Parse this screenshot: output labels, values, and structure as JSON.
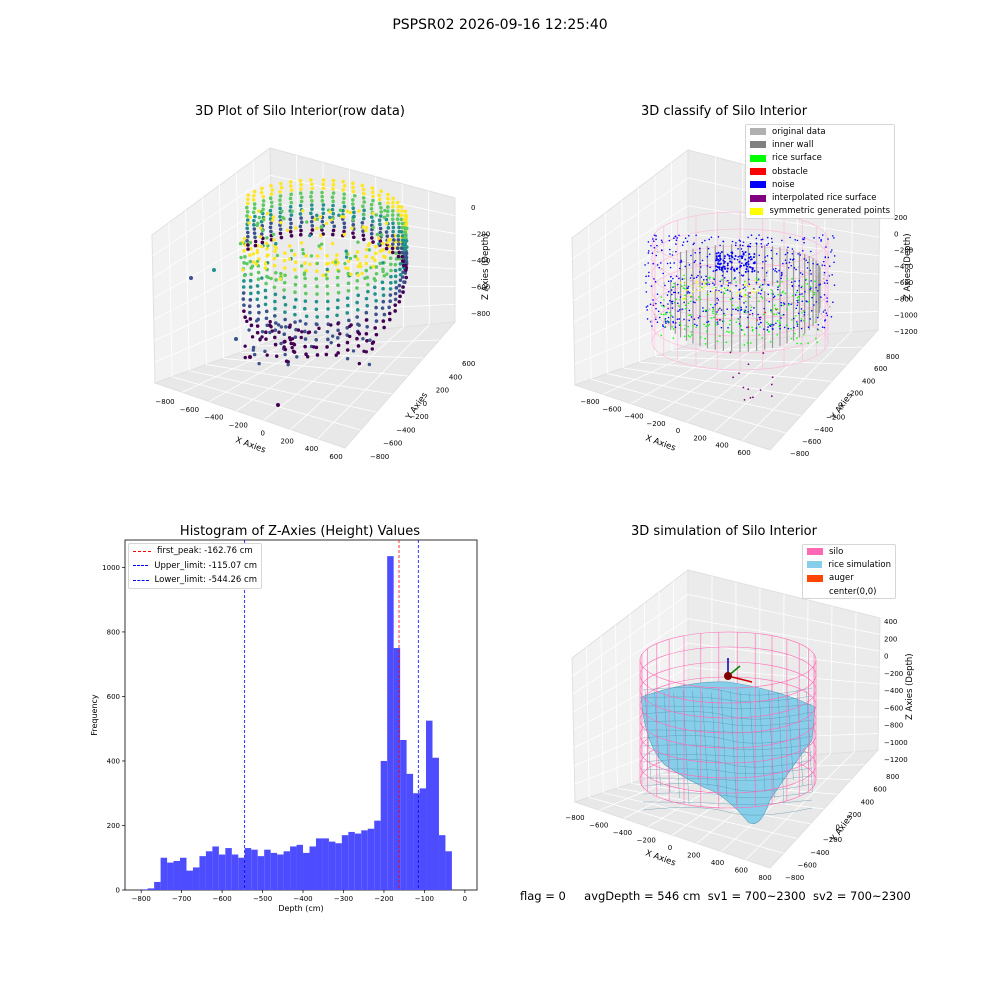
{
  "figure_title": "PSPSR02 2026-09-16 12:25:40",
  "footer": {
    "flag": "flag = 0",
    "avg_depth": "avgDepth = 546 cm",
    "sv1": "sv1 = 700~2300",
    "sv2": "sv2 = 700~2300"
  },
  "colors": {
    "hist_bar": "#4d4dff",
    "first_peak_line": "#ff0000",
    "limit_line": "#0000ff",
    "silo_wire": "#ff69b4",
    "rice_sim": "#87ceeb"
  },
  "chart_data": [
    {
      "type": "scatter",
      "projection": "3d",
      "title": "3D Plot of Silo Interior(row data)",
      "xlabel": "X Axies",
      "ylabel": "Y Axies",
      "zlabel": "Z Axies (Depth)",
      "x_ticks": [
        "−800",
        "−600",
        "−400",
        "−200",
        "0",
        "200",
        "400",
        "600"
      ],
      "y_ticks": [
        "−800",
        "−600",
        "−400",
        "−200",
        "0",
        "200",
        "400",
        "600"
      ],
      "z_ticks": [
        "0",
        "−200",
        "−400",
        "−600",
        "−800"
      ],
      "colormap": "viridis",
      "xlim": [
        -900,
        650
      ],
      "ylim": [
        -850,
        650
      ],
      "zlim": [
        -900,
        50
      ]
    },
    {
      "type": "scatter",
      "projection": "3d",
      "title": "3D classify of Silo Interior",
      "xlabel": "X Axies",
      "ylabel": "Y Axies",
      "zlabel": "Z Axies (Depth)",
      "x_ticks": [
        "−800",
        "−600",
        "−400",
        "−200",
        "0",
        "200",
        "400",
        "600"
      ],
      "y_ticks": [
        "−800",
        "−600",
        "−400",
        "−200",
        "0",
        "200",
        "400",
        "600",
        "800"
      ],
      "z_ticks": [
        "200",
        "0",
        "−200",
        "−400",
        "−600",
        "−800",
        "−1000",
        "−1200"
      ],
      "legend": [
        {
          "label": "original data",
          "color": "#b0b0b0"
        },
        {
          "label": "inner wall",
          "color": "#808080"
        },
        {
          "label": "rice surface",
          "color": "#00ff00"
        },
        {
          "label": "obstacle",
          "color": "#ff0000"
        },
        {
          "label": "noise",
          "color": "#0000ff"
        },
        {
          "label": "interpolated rice surface",
          "color": "#800080"
        },
        {
          "label": "symmetric generated points",
          "color": "#ffff00"
        }
      ],
      "legend_position": "top-right"
    },
    {
      "type": "bar",
      "title": "Histogram of Z-Axies (Height) Values",
      "xlabel": "Depth (cm)",
      "ylabel": "Frequency",
      "xlim": [
        -840,
        30
      ],
      "ylim": [
        0,
        1085
      ],
      "x_ticks": [
        -800,
        -700,
        -600,
        -500,
        -400,
        -300,
        -200,
        -100,
        0
      ],
      "y_ticks": [
        0,
        200,
        400,
        600,
        800,
        1000
      ],
      "bin_width": 16,
      "bin_start": -800,
      "values": [
        2,
        5,
        25,
        100,
        85,
        90,
        100,
        60,
        70,
        105,
        120,
        135,
        110,
        130,
        110,
        100,
        130,
        125,
        105,
        125,
        115,
        110,
        120,
        135,
        140,
        115,
        135,
        160,
        160,
        150,
        145,
        170,
        180,
        175,
        185,
        190,
        215,
        400,
        1035,
        750,
        465,
        360,
        300,
        315,
        525,
        410,
        170,
        120
      ],
      "vlines": [
        {
          "label": "first_peak: -162.76 cm",
          "x": -162.76,
          "color": "#ff0000"
        },
        {
          "label": "Upper_limit: -115.07 cm",
          "x": -115.07,
          "color": "#0000ff"
        },
        {
          "label": "Lower_limit: -544.26 cm",
          "x": -544.26,
          "color": "#0000ff"
        }
      ],
      "legend_position": "top-left"
    },
    {
      "type": "surface",
      "projection": "3d",
      "title": "3D simulation of Silo Interior",
      "xlabel": "X Axies",
      "ylabel": "Y Axies",
      "zlabel": "Z Axies (Depth)",
      "x_ticks": [
        "−800",
        "−600",
        "−400",
        "−200",
        "0",
        "200",
        "400",
        "600",
        "800"
      ],
      "y_ticks": [
        "−800",
        "−600",
        "−400",
        "−200",
        "0",
        "200",
        "400",
        "600",
        "800"
      ],
      "z_ticks": [
        "400",
        "200",
        "0",
        "−200",
        "−400",
        "−600",
        "−800",
        "−1000",
        "−1200"
      ],
      "legend": [
        {
          "label": "silo",
          "color": "#ff69b4"
        },
        {
          "label": "rice simulation",
          "color": "#87ceeb"
        },
        {
          "label": "auger",
          "color": "#ff4500"
        },
        {
          "label": "center(0,0)",
          "color": ""
        }
      ],
      "legend_position": "top-right"
    }
  ]
}
